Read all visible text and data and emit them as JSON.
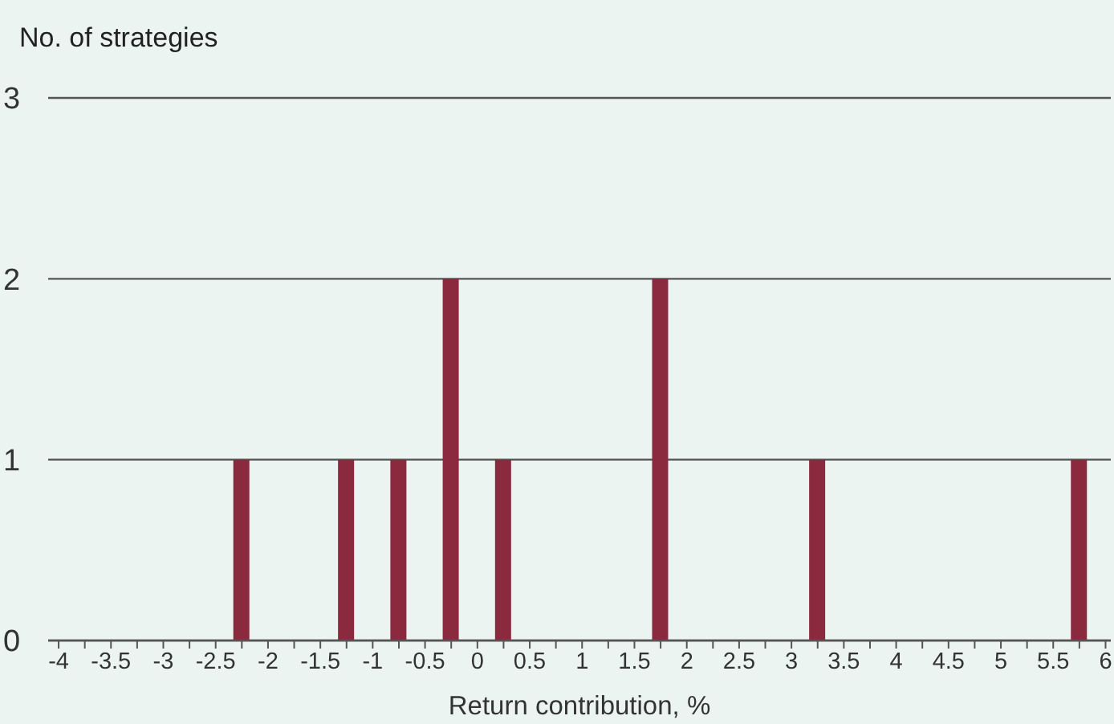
{
  "chart_data": {
    "type": "histogram",
    "xlabel": "Return contribution, %",
    "ylabel": "No. of strategies",
    "bins": [
      -4,
      -3.5,
      -3,
      -2.5,
      -2,
      -1.5,
      -1,
      -0.5,
      0,
      0.5,
      1,
      1.5,
      2,
      2.5,
      3,
      3.5,
      4,
      4.5,
      5,
      5.5,
      6
    ],
    "values": [
      0,
      0,
      0,
      1,
      0,
      1,
      1,
      2,
      1,
      0,
      0,
      2,
      0,
      0,
      1,
      0,
      0,
      0,
      0,
      1
    ],
    "color": "#8b2a3f",
    "xlim": [
      -4.1,
      6.05
    ],
    "xticks": [
      -4,
      {
        "value": -3.75,
        "label": null
      },
      -3.5,
      {
        "value": -3.25,
        "label": null
      },
      -3,
      {
        "value": -2.75,
        "label": null
      },
      -2.5,
      {
        "value": -2.25,
        "label": null
      },
      -2,
      {
        "value": -1.75,
        "label": null
      },
      -1.5,
      {
        "value": -1.25,
        "label": null
      },
      -1,
      {
        "value": -0.75,
        "label": null
      },
      -0.5,
      {
        "value": -0.25,
        "label": null
      },
      0,
      {
        "value": 0.25,
        "label": null
      },
      0.5,
      {
        "value": 0.75,
        "label": null
      },
      1,
      {
        "value": 1.25,
        "label": null
      },
      1.5,
      {
        "value": 1.75,
        "label": null
      },
      2,
      {
        "value": 2.25,
        "label": null
      },
      2.5,
      {
        "value": 2.75,
        "label": null
      },
      3,
      {
        "value": 3.25,
        "label": null
      },
      3.5,
      {
        "value": 3.75,
        "label": null
      },
      4,
      {
        "value": 4.25,
        "label": null
      },
      4.5,
      {
        "value": 4.75,
        "label": null
      },
      5,
      {
        "value": 5.25,
        "label": null
      },
      5.5,
      {
        "value": 5.75,
        "label": null
      },
      6
    ],
    "ylim": [
      0,
      3
    ],
    "yticks": [
      0,
      1,
      2,
      3
    ],
    "grid": "y"
  }
}
